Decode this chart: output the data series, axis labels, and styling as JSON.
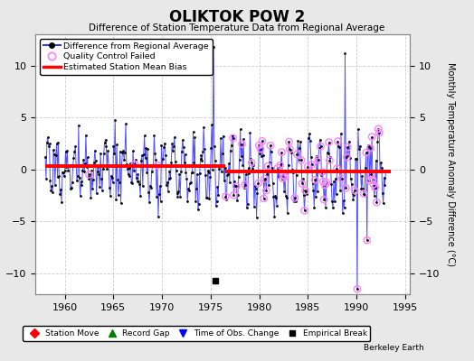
{
  "title": "OLIKTOK POW 2",
  "subtitle": "Difference of Station Temperature Data from Regional Average",
  "ylabel_right": "Monthly Temperature Anomaly Difference (°C)",
  "xlim": [
    1957.0,
    1995.5
  ],
  "ylim": [
    -12,
    13
  ],
  "yticks": [
    -10,
    -5,
    0,
    5,
    10
  ],
  "xticks": [
    1960,
    1965,
    1970,
    1975,
    1980,
    1985,
    1990,
    1995
  ],
  "bias_line_y1": 0.3,
  "bias_line_y2": -0.2,
  "bias_break_x": 1976.5,
  "background_color": "#e8e8e8",
  "plot_bg_color": "#ffffff",
  "line_color": "#3333ff",
  "bias_color": "#ff0000",
  "dot_color": "#000000",
  "qc_color": "#ff80ff",
  "watermark": "Berkeley Earth",
  "seed": 17,
  "start_year": 1958.0,
  "end_year": 1993.0
}
